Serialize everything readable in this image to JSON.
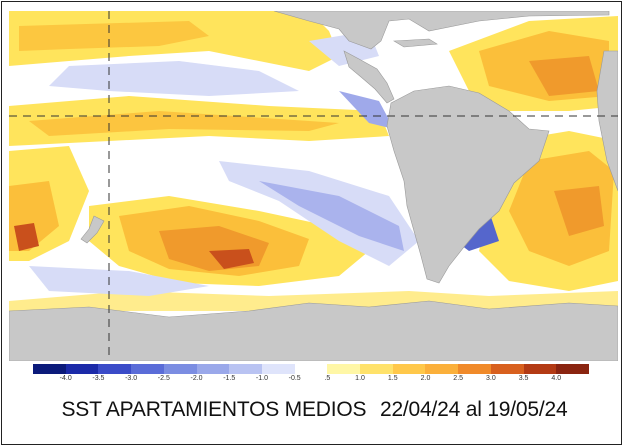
{
  "title": {
    "main": "SST APARTAMIENTOS MEDIOS",
    "period": "22/04/24 al 19/05/24"
  },
  "legend": {
    "ticks": [
      "-4.0",
      "-3.5",
      "-3.0",
      "-2.5",
      "-2.0",
      "-1.5",
      "-1.0",
      "-0.5",
      ".5",
      "1.0",
      "1.5",
      "2.0",
      "2.5",
      "3.0",
      "3.5",
      "4.0"
    ],
    "colors": [
      "#0b1a7a",
      "#1b2aa8",
      "#3a4bc8",
      "#5a6cd8",
      "#7b8de2",
      "#9aa8ea",
      "#b9c3f2",
      "#dfe4fb",
      "#ffffff",
      "#fff7a6",
      "#ffe26a",
      "#ffc84a",
      "#fbb03b",
      "#f08a2a",
      "#d8601e",
      "#b33a14",
      "#8a2410"
    ]
  },
  "map": {
    "colors": {
      "land": "#c8c8c8",
      "ocean_neutral": "#ffffff",
      "warm_light": "#ffe45c",
      "warm": "#fbbf3a",
      "warm_strong": "#f09a2c",
      "hot": "#c9501c",
      "cool_light": "#d7dcf7",
      "cool": "#9fa9ea",
      "cool_strong": "#5566cc"
    }
  }
}
